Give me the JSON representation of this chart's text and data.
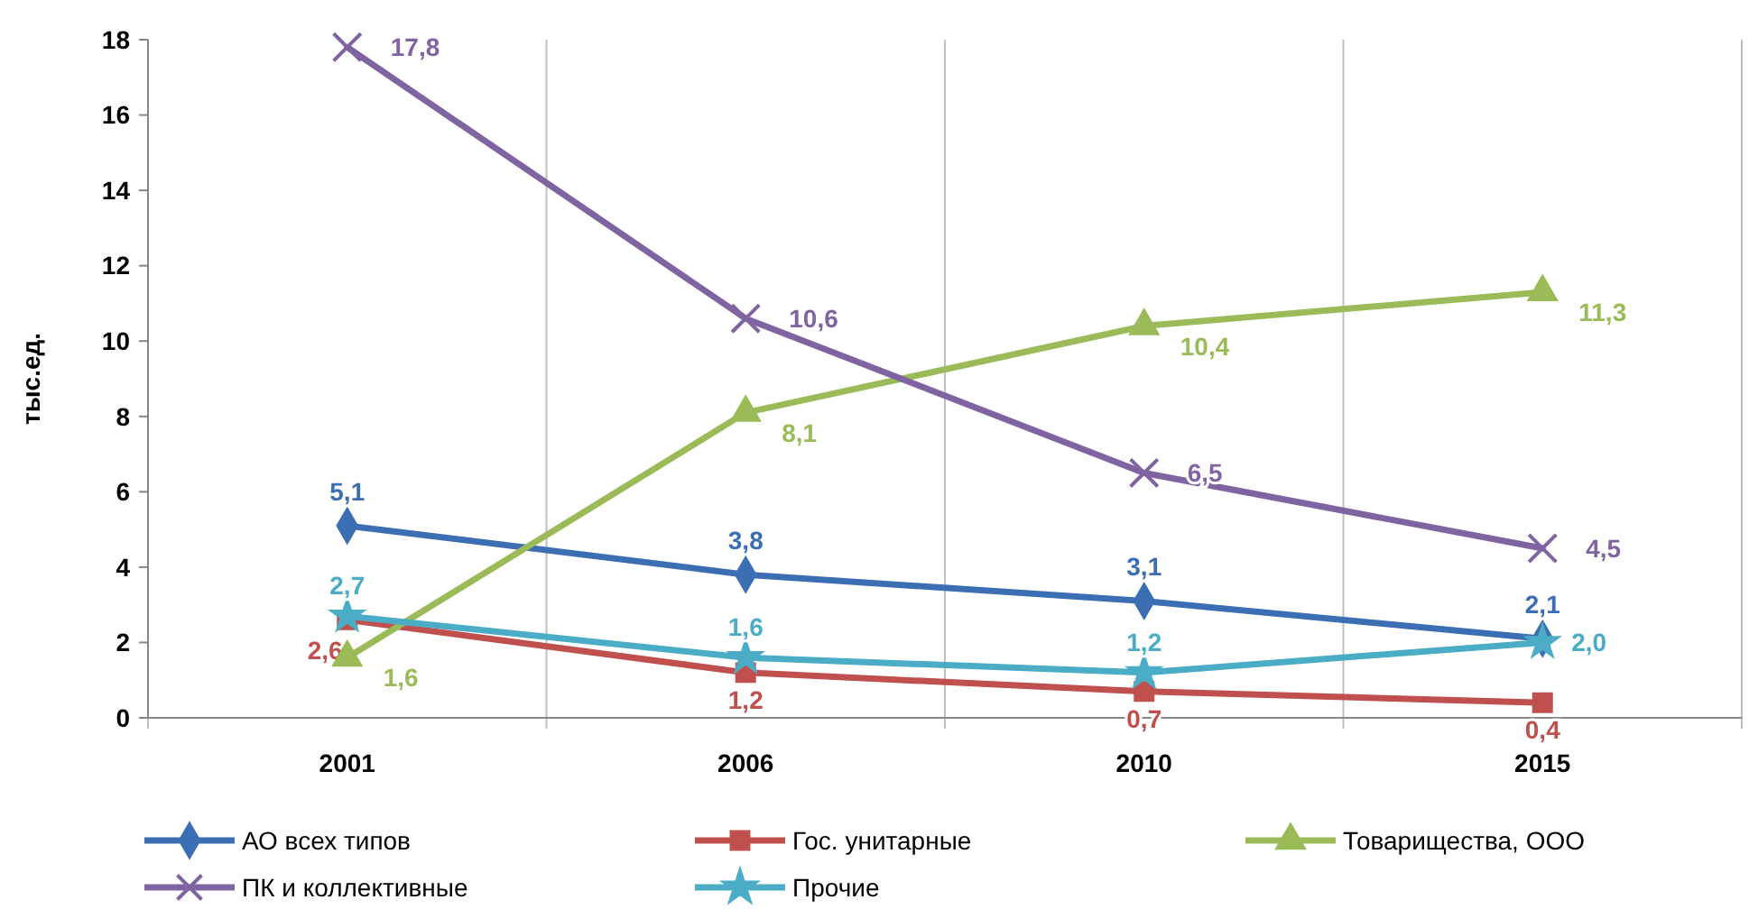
{
  "chart_data": {
    "type": "line",
    "ylabel": "тыс.ед.",
    "categories": [
      "2001",
      "2006",
      "2010",
      "2015"
    ],
    "ylim": [
      0,
      18
    ],
    "yticks": [
      0,
      2,
      4,
      6,
      8,
      10,
      12,
      14,
      16,
      18
    ],
    "grid": "x",
    "legend": "bottom",
    "data_labels": true,
    "series": [
      {
        "name": "АО всех типов",
        "color": "#3c6eb4",
        "marker": "diamond",
        "values": [
          5.1,
          3.8,
          3.1,
          2.1
        ],
        "value_labels": [
          "5,1",
          "3,8",
          "3,1",
          "2,1"
        ]
      },
      {
        "name": "Гос. унитарные",
        "color": "#c0504d",
        "marker": "square",
        "values": [
          2.6,
          1.2,
          0.7,
          0.4
        ],
        "value_labels": [
          "2,6",
          "1,2",
          "0,7",
          "0,4"
        ]
      },
      {
        "name": "Товарищества, ООО",
        "color": "#9bbb59",
        "marker": "triangle",
        "values": [
          1.6,
          8.1,
          10.4,
          11.3
        ],
        "value_labels": [
          "1,6",
          "8,1",
          "10,4",
          "11,3"
        ]
      },
      {
        "name": "ПК и коллективные",
        "color": "#8064a2",
        "marker": "cross",
        "values": [
          17.8,
          10.6,
          6.5,
          4.5
        ],
        "value_labels": [
          "17,8",
          "10,6",
          "6,5",
          "4,5"
        ]
      },
      {
        "name": "Прочие",
        "color": "#4bacc6",
        "marker": "star",
        "values": [
          2.7,
          1.6,
          1.2,
          2.0
        ],
        "value_labels": [
          "2,7",
          "1,6",
          "1,2",
          "2,0"
        ]
      }
    ]
  }
}
